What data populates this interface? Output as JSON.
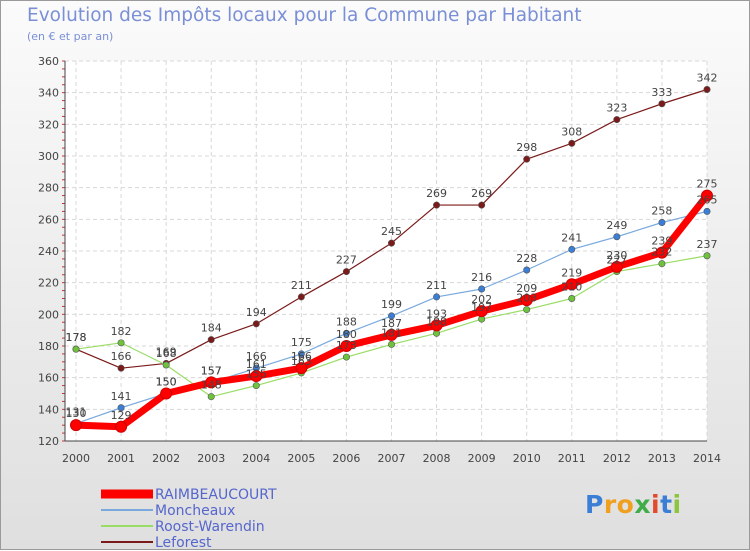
{
  "title": "Evolution des Impôts locaux pour la Commune par Habitant",
  "subtitle": "(en € et par an)",
  "logo": {
    "letters": [
      {
        "ch": "P",
        "color": "#3a7fd5"
      },
      {
        "ch": "r",
        "color": "#f0a020"
      },
      {
        "ch": "o",
        "color": "#f0a020"
      },
      {
        "ch": "x",
        "color": "#3fae49"
      },
      {
        "ch": "i",
        "color": "#e24a2e"
      },
      {
        "ch": "t",
        "color": "#3a7fd5"
      },
      {
        "ch": "i",
        "color": "#8cc63f"
      }
    ]
  },
  "chart_data": {
    "type": "line",
    "x": [
      2000,
      2001,
      2002,
      2003,
      2004,
      2005,
      2006,
      2007,
      2008,
      2009,
      2010,
      2011,
      2012,
      2013,
      2014
    ],
    "ylim": [
      120,
      360
    ],
    "yticks": [
      120,
      140,
      160,
      180,
      200,
      220,
      240,
      260,
      280,
      300,
      320,
      340,
      360
    ],
    "grid": true,
    "legend_position": "bottom-left",
    "series": [
      {
        "name": "Leforest",
        "color": "#7b1a1a",
        "point_color": "#7b1a1a",
        "values": [
          178,
          166,
          169,
          184,
          194,
          211,
          227,
          245,
          269,
          269,
          298,
          308,
          323,
          333,
          342
        ]
      },
      {
        "name": "Roost-Warendin",
        "color": "#99dd66",
        "point_color": "#6ec23e",
        "values": [
          178,
          182,
          168,
          148,
          155,
          163,
          173,
          181,
          188,
          197,
          203,
          210,
          227,
          232,
          237
        ]
      },
      {
        "name": "Moncheaux",
        "color": "#7aaadd",
        "point_color": "#3a7fd5",
        "values": [
          131,
          141,
          150,
          157,
          166,
          175,
          188,
          199,
          211,
          216,
          228,
          241,
          249,
          258,
          265
        ]
      },
      {
        "name": "RAIMBEAUCOURT",
        "color": "#ff0000",
        "point_color": "#ff0000",
        "values": [
          130,
          129,
          150,
          157,
          161,
          166,
          180,
          187,
          193,
          202,
          209,
          219,
          230,
          239,
          275
        ]
      }
    ],
    "legend_order": [
      "RAIMBEAUCOURT",
      "Moncheaux",
      "Roost-Warendin",
      "Leforest"
    ]
  }
}
